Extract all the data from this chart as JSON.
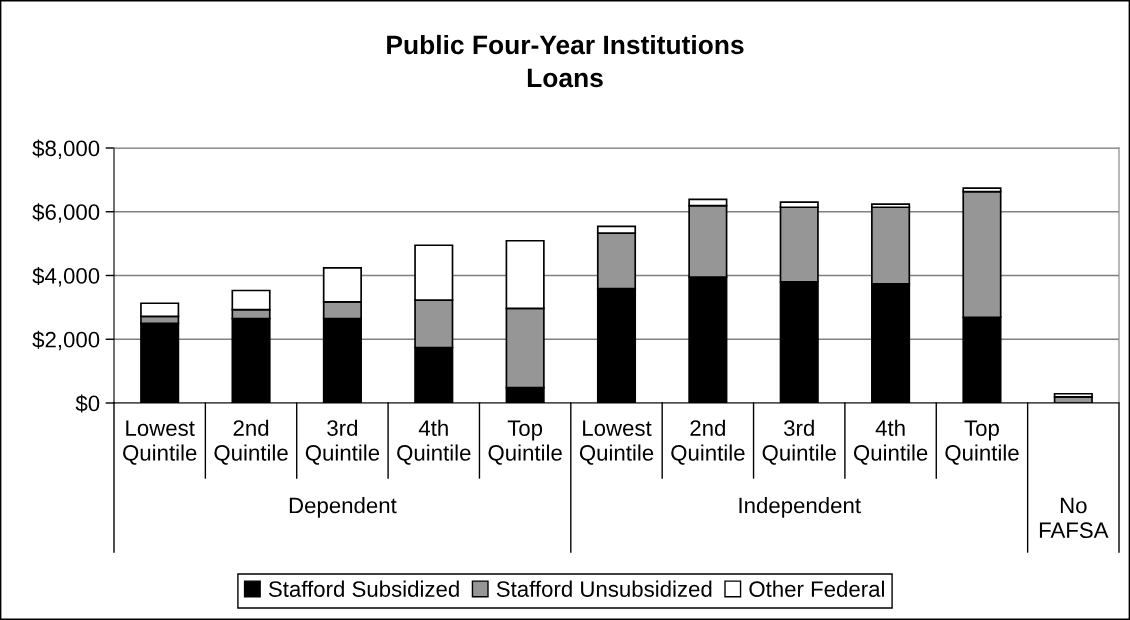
{
  "chart_data": {
    "type": "bar",
    "title": "Public Four-Year Institutions",
    "subtitle": "Loans",
    "categories": [
      "Lowest Quintile",
      "2nd Quintile",
      "3rd Quintile",
      "4th Quintile",
      "Top Quintile",
      "Lowest Quintile",
      "2nd Quintile",
      "3rd Quintile",
      "4th Quintile",
      "Top Quintile",
      null
    ],
    "annotations": [
      "Dependent",
      "Independent",
      "No FAFSA"
    ],
    "stacked": true,
    "series": [
      {
        "name": "Stafford Subsidized",
        "color": "#000000",
        "values": [
          2500,
          2650,
          2650,
          1740,
          480,
          3590,
          3950,
          3800,
          3740,
          2690,
          0
        ]
      },
      {
        "name": "Stafford Unsubsidized",
        "color": "#969696",
        "values": [
          220,
          280,
          520,
          1490,
          2490,
          1740,
          2240,
          2340,
          2400,
          3940,
          190
        ]
      },
      {
        "name": "Other Federal",
        "color": "#ffffff",
        "values": [
          410,
          600,
          1070,
          1720,
          2120,
          210,
          200,
          160,
          100,
          110,
          100
        ]
      }
    ],
    "ylim": [
      0,
      8000
    ],
    "yticks": [
      {
        "value": 0,
        "label": "$0"
      },
      {
        "value": 2000,
        "label": "$2,000"
      },
      {
        "value": 4000,
        "label": "$4,000"
      },
      {
        "value": 6000,
        "label": "$6,000"
      },
      {
        "value": 8000,
        "label": "$8,000"
      }
    ],
    "grid": "y",
    "legend": "bottom"
  }
}
